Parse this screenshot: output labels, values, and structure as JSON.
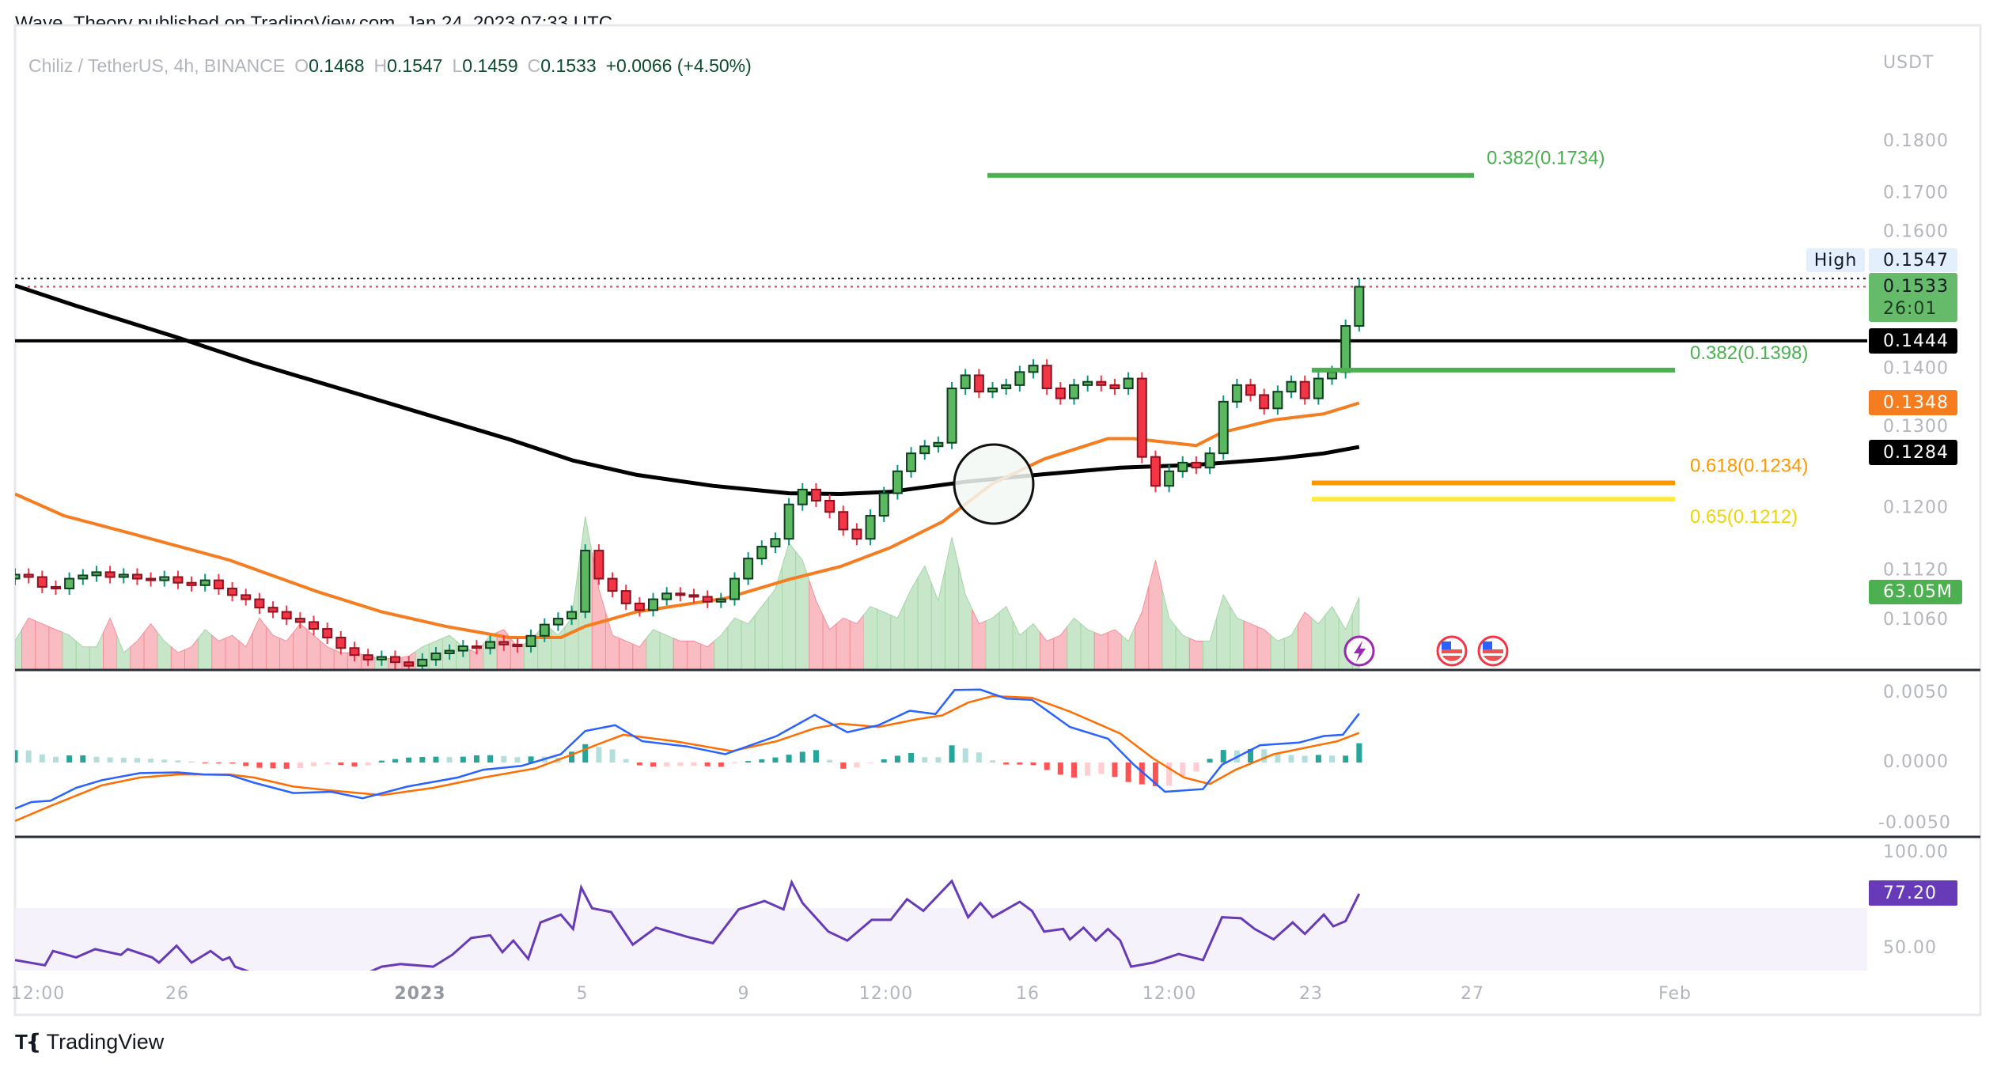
{
  "header": {
    "published": "Wave_Theory published on TradingView.com, Jan 24, 2023 07:33 UTC"
  },
  "legend": {
    "symbol": "Chiliz / TetherUS, 4h, BINANCE",
    "o_label": "O",
    "o": "0.1468",
    "h_label": "H",
    "h": "0.1547",
    "l_label": "L",
    "l": "0.1459",
    "c_label": "C",
    "c": "0.1533",
    "change": "+0.0066 (+4.50%)"
  },
  "price_axis": {
    "currency": "USDT",
    "ticks": [
      "0.1800",
      "0.1700",
      "0.1600",
      "0.1400",
      "0.1300",
      "0.1200",
      "0.1120",
      "0.1060"
    ],
    "tick_values": [
      0.18,
      0.17,
      0.16,
      0.14,
      0.13,
      0.12,
      0.112,
      0.106
    ],
    "high_label": "High",
    "high_value": "0.1547",
    "last_price": "0.1533",
    "countdown": "26:01",
    "resistance": "0.1444",
    "ema50": "0.1348",
    "ema200": "0.1284",
    "volume": "63.05M"
  },
  "macd_axis": {
    "ticks": [
      "0.0050",
      "0.0000",
      "-0.0050"
    ]
  },
  "rsi_axis": {
    "ticks": [
      "100.00",
      "50.00"
    ],
    "value": "77.20"
  },
  "time_axis": {
    "labels": [
      "12:00",
      "26",
      "2023",
      "5",
      "9",
      "12:00",
      "16",
      "12:00",
      "23",
      "27",
      "Feb"
    ]
  },
  "fib": {
    "upper": {
      "label": "0.382(0.1734)",
      "price": 0.1734
    },
    "l382": {
      "label": "0.382(0.1398)",
      "price": 0.1398
    },
    "l618": {
      "label": "0.618(0.1234)",
      "price": 0.1234
    },
    "l65": {
      "label": "0.65(0.1212)",
      "price": 0.1212
    }
  },
  "colors": {
    "up": "#5cb85f",
    "down": "#f23645",
    "up_wick": "#089981",
    "down_wick": "#f23645",
    "vol_up": "#c8e6c9",
    "vol_down": "#f9bcc2",
    "ema50": "#f57c1f",
    "ema200": "#000000",
    "fib_green": "#4caf50",
    "fib_orange": "#ff9800",
    "fib_yellow": "#ffeb3b",
    "macd": "#2962ff",
    "signal": "#ff6d00",
    "rsi": "#673ab7"
  },
  "logo": {
    "text": "TradingView"
  },
  "chart_data": {
    "type": "candlestick",
    "title": "Chiliz / TetherUS, 4h, BINANCE",
    "yscale": "log",
    "first_open": 0.111,
    "last_high": 0.1547,
    "last_low": 0.1459,
    "closes": [
      0.1115,
      0.1112,
      0.11,
      0.1098,
      0.111,
      0.1114,
      0.1118,
      0.1112,
      0.1115,
      0.111,
      0.1108,
      0.1112,
      0.1105,
      0.1102,
      0.1108,
      0.1098,
      0.109,
      0.1085,
      0.1075,
      0.107,
      0.1062,
      0.1058,
      0.105,
      0.104,
      0.1028,
      0.102,
      0.1015,
      0.1018,
      0.1012,
      0.1008,
      0.1015,
      0.1022,
      0.1025,
      0.103,
      0.1028,
      0.1035,
      0.1032,
      0.103,
      0.1042,
      0.1055,
      0.1062,
      0.107,
      0.1145,
      0.111,
      0.1095,
      0.108,
      0.1072,
      0.1085,
      0.1092,
      0.109,
      0.1088,
      0.1082,
      0.1085,
      0.111,
      0.1135,
      0.115,
      0.116,
      0.1205,
      0.1225,
      0.121,
      0.1195,
      0.1172,
      0.116,
      0.119,
      0.122,
      0.125,
      0.1275,
      0.1285,
      0.129,
      0.137,
      0.139,
      0.1365,
      0.137,
      0.1375,
      0.1395,
      0.1405,
      0.137,
      0.1355,
      0.1375,
      0.138,
      0.1375,
      0.137,
      0.1385,
      0.127,
      0.123,
      0.125,
      0.1262,
      0.1255,
      0.1275,
      0.135,
      0.1375,
      0.136,
      0.134,
      0.1365,
      0.138,
      0.1355,
      0.1385,
      0.1395,
      0.1468,
      0.1533
    ],
    "volumes_m": [
      25,
      45,
      40,
      35,
      30,
      20,
      20,
      45,
      15,
      25,
      40,
      25,
      15,
      20,
      35,
      25,
      30,
      20,
      45,
      30,
      25,
      40,
      30,
      20,
      15,
      15,
      12,
      10,
      10,
      12,
      20,
      25,
      30,
      20,
      15,
      30,
      35,
      20,
      25,
      40,
      30,
      45,
      133,
      70,
      30,
      25,
      20,
      35,
      30,
      25,
      25,
      20,
      30,
      45,
      40,
      55,
      70,
      110,
      95,
      60,
      35,
      45,
      40,
      55,
      50,
      45,
      70,
      90,
      60,
      115,
      65,
      40,
      45,
      55,
      30,
      40,
      25,
      30,
      45,
      35,
      30,
      35,
      25,
      50,
      95,
      45,
      30,
      25,
      25,
      65,
      45,
      40,
      35,
      25,
      30,
      50,
      40,
      55,
      35,
      63.05
    ],
    "ema50": [
      [
        0,
        0.1219
      ],
      [
        3.6,
        0.119
      ],
      [
        8.3,
        0.1168
      ],
      [
        15.8,
        0.1133
      ],
      [
        22.3,
        0.1094
      ],
      [
        27,
        0.107
      ],
      [
        31.7,
        0.1053
      ],
      [
        36.4,
        0.104
      ],
      [
        40.2,
        0.104
      ],
      [
        42,
        0.1053
      ],
      [
        45.8,
        0.107
      ],
      [
        52.3,
        0.1086
      ],
      [
        57,
        0.1109
      ],
      [
        60.8,
        0.1125
      ],
      [
        64.5,
        0.1149
      ],
      [
        68.3,
        0.1182
      ],
      [
        72,
        0.1233
      ],
      [
        75.8,
        0.1267
      ],
      [
        80.5,
        0.1296
      ],
      [
        82.4,
        0.1296
      ],
      [
        87,
        0.1286
      ],
      [
        88.9,
        0.1305
      ],
      [
        92.7,
        0.1323
      ],
      [
        96.4,
        0.1332
      ],
      [
        99,
        0.1348
      ]
    ],
    "ema200": [
      [
        0,
        0.1535
      ],
      [
        4.5,
        0.1501
      ],
      [
        12,
        0.1449
      ],
      [
        17.6,
        0.1409
      ],
      [
        27,
        0.1351
      ],
      [
        36.4,
        0.1295
      ],
      [
        41.1,
        0.1265
      ],
      [
        45.8,
        0.1245
      ],
      [
        51.4,
        0.123
      ],
      [
        57,
        0.122
      ],
      [
        60.8,
        0.1219
      ],
      [
        64.5,
        0.1222
      ],
      [
        70.2,
        0.1236
      ],
      [
        75.8,
        0.1246
      ],
      [
        81.4,
        0.1255
      ],
      [
        87,
        0.1259
      ],
      [
        92.7,
        0.1267
      ],
      [
        96.4,
        0.1275
      ],
      [
        99,
        0.1284
      ]
    ],
    "resistance": 0.1444,
    "macd": [
      [
        0,
        -0.00327
      ],
      [
        1.2,
        -0.00281
      ],
      [
        2.6,
        -0.00272
      ],
      [
        4.5,
        -0.0018
      ],
      [
        6.4,
        -0.00125
      ],
      [
        9.2,
        -0.00075
      ],
      [
        12,
        -0.0007
      ],
      [
        13.9,
        -0.00085
      ],
      [
        15.8,
        -0.00088
      ],
      [
        17.6,
        -0.00143
      ],
      [
        20.5,
        -0.00217
      ],
      [
        23.3,
        -0.00208
      ],
      [
        25.6,
        -0.00254
      ],
      [
        28.9,
        -0.00171
      ],
      [
        32.6,
        -0.00107
      ],
      [
        34.5,
        -0.00051
      ],
      [
        37.3,
        -0.00024
      ],
      [
        40.2,
        0.00059
      ],
      [
        42,
        0.00224
      ],
      [
        44.2,
        0.00265
      ],
      [
        46.2,
        0.00151
      ],
      [
        49.5,
        0.00114
      ],
      [
        52.3,
        0.00059
      ],
      [
        56.1,
        0.00188
      ],
      [
        58.9,
        0.00338
      ],
      [
        61.3,
        0.00215
      ],
      [
        63.6,
        0.00265
      ],
      [
        65.9,
        0.00368
      ],
      [
        67.8,
        0.00344
      ],
      [
        69.2,
        0.00515
      ],
      [
        71.1,
        0.00518
      ],
      [
        73,
        0.00454
      ],
      [
        74.9,
        0.00445
      ],
      [
        77.7,
        0.00252
      ],
      [
        80.5,
        0.00169
      ],
      [
        82.4,
        -0.00015
      ],
      [
        84.7,
        -0.00208
      ],
      [
        87.5,
        -0.00189
      ],
      [
        88.9,
        -0.00015
      ],
      [
        91.7,
        0.00123
      ],
      [
        94.6,
        0.00142
      ],
      [
        96.4,
        0.00188
      ],
      [
        97.8,
        0.00197
      ],
      [
        99,
        0.00347
      ]
    ],
    "signal": [
      [
        0,
        -0.00415
      ],
      [
        2.6,
        -0.00309
      ],
      [
        6.4,
        -0.00162
      ],
      [
        9.2,
        -0.00107
      ],
      [
        12,
        -0.00085
      ],
      [
        15.8,
        -0.00085
      ],
      [
        17.6,
        -0.00107
      ],
      [
        20.5,
        -0.00171
      ],
      [
        23.3,
        -0.00199
      ],
      [
        27,
        -0.00232
      ],
      [
        30.8,
        -0.0018
      ],
      [
        34.5,
        -0.00107
      ],
      [
        38.3,
        -0.00042
      ],
      [
        41.1,
        0.00059
      ],
      [
        43,
        0.00132
      ],
      [
        44.8,
        0.00197
      ],
      [
        48.6,
        0.00151
      ],
      [
        52.8,
        0.00081
      ],
      [
        56.1,
        0.00151
      ],
      [
        58.9,
        0.00243
      ],
      [
        60.8,
        0.00276
      ],
      [
        63.6,
        0.00252
      ],
      [
        66.4,
        0.00307
      ],
      [
        68.3,
        0.00335
      ],
      [
        70.2,
        0.00426
      ],
      [
        72,
        0.00472
      ],
      [
        74.9,
        0.0046
      ],
      [
        77.7,
        0.00362
      ],
      [
        81.4,
        0.00206
      ],
      [
        83.8,
        0.00031
      ],
      [
        86.1,
        -0.00107
      ],
      [
        88,
        -0.00153
      ],
      [
        89.9,
        -0.00051
      ],
      [
        92.7,
        0.00059
      ],
      [
        95.5,
        0.00114
      ],
      [
        97.4,
        0.00151
      ],
      [
        99,
        0.0021
      ]
    ],
    "rsi": [
      [
        0,
        44.2
      ],
      [
        2.2,
        41.6
      ],
      [
        2.8,
        48.7
      ],
      [
        4.5,
        45.5
      ],
      [
        5.9,
        49.6
      ],
      [
        7.8,
        46.8
      ],
      [
        8.3,
        49.6
      ],
      [
        10.1,
        45.5
      ],
      [
        10.6,
        42.9
      ],
      [
        11.9,
        51.3
      ],
      [
        13,
        42.9
      ],
      [
        14.4,
        48.7
      ],
      [
        15.3,
        44.2
      ],
      [
        15.8,
        45.5
      ],
      [
        16.2,
        40.9
      ],
      [
        19.5,
        33
      ],
      [
        23.3,
        30
      ],
      [
        27,
        40.9
      ],
      [
        28.4,
        42.2
      ],
      [
        30.8,
        40.9
      ],
      [
        32.2,
        46.8
      ],
      [
        33.6,
        55.2
      ],
      [
        35,
        56.5
      ],
      [
        35.9,
        48.1
      ],
      [
        36.7,
        53.9
      ],
      [
        37.8,
        44.8
      ],
      [
        38.7,
        62.9
      ],
      [
        40.2,
        66.8
      ],
      [
        41.1,
        59.7
      ],
      [
        41.7,
        80.3
      ],
      [
        42.5,
        70
      ],
      [
        43.9,
        68.1
      ],
      [
        45.5,
        51.9
      ],
      [
        47.2,
        60.3
      ],
      [
        49.5,
        55.8
      ],
      [
        51.4,
        52.6
      ],
      [
        53.3,
        69.4
      ],
      [
        55.2,
        73.6
      ],
      [
        56.6,
        69.4
      ],
      [
        57.2,
        82.9
      ],
      [
        58,
        72.6
      ],
      [
        59.9,
        58.4
      ],
      [
        61.3,
        53.9
      ],
      [
        63.1,
        64.2
      ],
      [
        64.5,
        64.2
      ],
      [
        65.7,
        74.5
      ],
      [
        66.9,
        68.7
      ],
      [
        69,
        83.5
      ],
      [
        70.2,
        65.5
      ],
      [
        71.1,
        72.6
      ],
      [
        72,
        65.5
      ],
      [
        74,
        73.2
      ],
      [
        74.9,
        68.7
      ],
      [
        75.8,
        58.4
      ],
      [
        77.2,
        59.7
      ],
      [
        77.7,
        54.5
      ],
      [
        78.7,
        60.3
      ],
      [
        79.6,
        53.9
      ],
      [
        80.5,
        59.7
      ],
      [
        81.4,
        53.9
      ],
      [
        82.2,
        40.9
      ],
      [
        83.8,
        42.9
      ],
      [
        85.7,
        47.2
      ],
      [
        87.5,
        44.2
      ],
      [
        88.9,
        65.5
      ],
      [
        90.3,
        65
      ],
      [
        91.3,
        59.7
      ],
      [
        92.7,
        54.5
      ],
      [
        94.1,
        62.9
      ],
      [
        95,
        57.2
      ],
      [
        96.4,
        66.8
      ],
      [
        97.1,
        61
      ],
      [
        98,
        63.6
      ],
      [
        99,
        77.2
      ]
    ],
    "macd_range": [
      -0.005,
      0.005
    ],
    "rsi_range": [
      30,
      100
    ],
    "rsi_band": [
      30,
      70
    ]
  }
}
